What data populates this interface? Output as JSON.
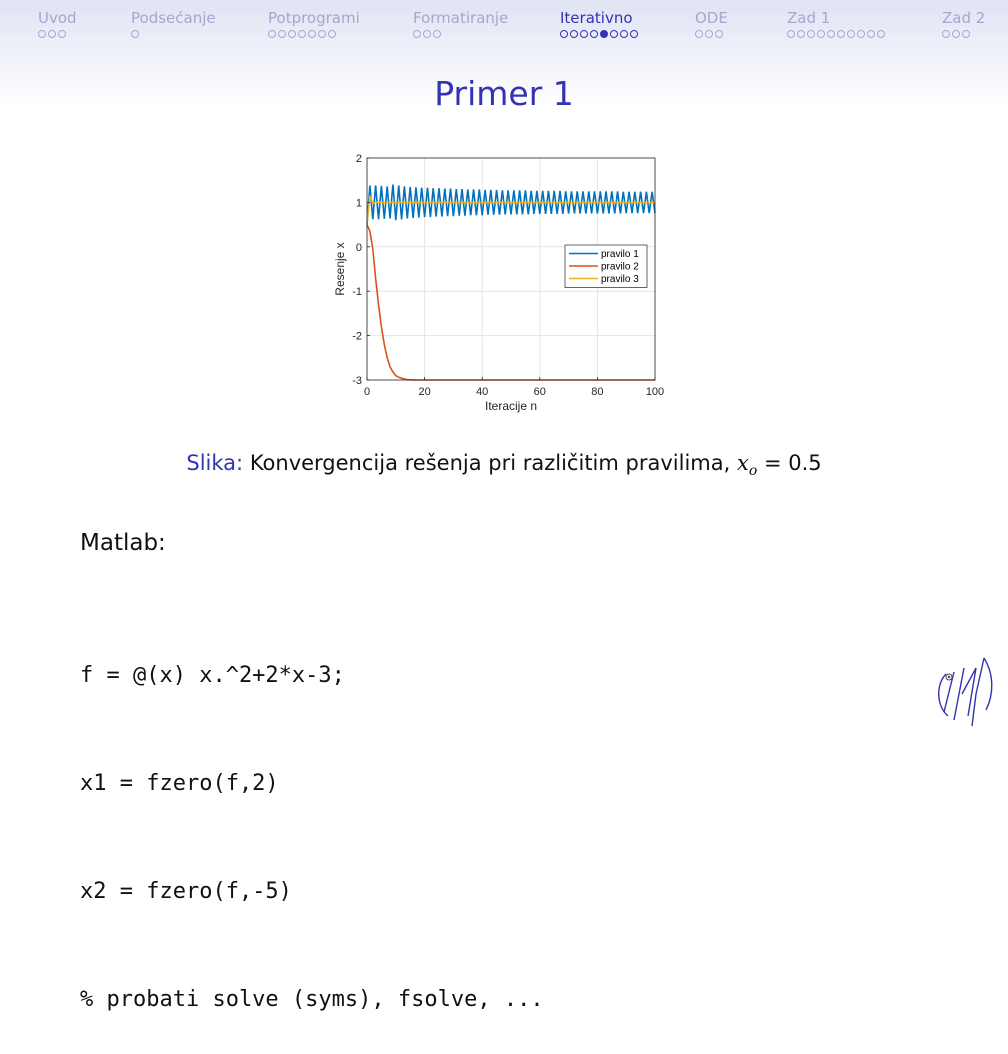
{
  "nav": {
    "sections": [
      {
        "label": "Uvod",
        "dots": 3,
        "active_dot": null
      },
      {
        "label": "Podsećanje",
        "dots": 1,
        "active_dot": null
      },
      {
        "label": "Potprogrami",
        "dots": 7,
        "active_dot": null
      },
      {
        "label": "Formatiranje",
        "dots": 3,
        "active_dot": null
      },
      {
        "label": "Iterativno",
        "dots": 8,
        "active_dot": 4
      },
      {
        "label": "ODE",
        "dots": 3,
        "active_dot": null
      },
      {
        "label": "Zad 1",
        "dots": 10,
        "active_dot": null
      },
      {
        "label": "Zad 2",
        "dots": 3,
        "active_dot": null
      }
    ],
    "active_section": "Iterativno",
    "colors": {
      "active": "#3333b3",
      "inactive": "#a4a8cf"
    }
  },
  "slide": {
    "title": "Primer 1",
    "caption_prefix": "Slika:",
    "caption_text": "Konvergencija rešenja pri različitim pravilima,",
    "caption_var": "x",
    "caption_sub": "o",
    "caption_eq": "= 0.5",
    "matlab_label": "Matlab:",
    "code": [
      "f = @(x) x.^2+2*x-3;",
      "x1 = fzero(f,2)",
      "x2 = fzero(f,-5)",
      "% probati solve (syms), fsolve, ..."
    ]
  },
  "chart_data": {
    "type": "line",
    "xlabel": "Iteracije n",
    "ylabel": "Resenje x",
    "xlim": [
      0,
      100
    ],
    "ylim": [
      -3,
      2
    ],
    "xticks": [
      0,
      20,
      40,
      60,
      80,
      100
    ],
    "yticks": [
      -3,
      -2,
      -1,
      0,
      1,
      2
    ],
    "grid": true,
    "legend_position": "right",
    "series": [
      {
        "name": "pravilo 1",
        "color": "#0072bd",
        "x": [
          0,
          1,
          2,
          3,
          4,
          5,
          6,
          7,
          8,
          9,
          10,
          11,
          12,
          13,
          14,
          15,
          16,
          17,
          18,
          19,
          20,
          21,
          22,
          23,
          24,
          25,
          26,
          27,
          28,
          29,
          30,
          31,
          32,
          33,
          34,
          35,
          36,
          37,
          38,
          39,
          40,
          41,
          42,
          43,
          44,
          45,
          46,
          47,
          48,
          49,
          50,
          51,
          52,
          53,
          54,
          55,
          56,
          57,
          58,
          59,
          60,
          61,
          62,
          63,
          64,
          65,
          66,
          67,
          68,
          69,
          70,
          71,
          72,
          73,
          74,
          75,
          76,
          77,
          78,
          79,
          80,
          81,
          82,
          83,
          84,
          85,
          86,
          87,
          88,
          89,
          90,
          91,
          92,
          93,
          94,
          95,
          96,
          97,
          98,
          99,
          100
        ],
        "values": [
          0.5,
          1.38,
          0.62,
          1.38,
          0.62,
          1.37,
          0.63,
          1.36,
          0.64,
          1.4,
          0.6,
          1.38,
          0.62,
          1.36,
          0.64,
          1.35,
          0.65,
          1.34,
          0.66,
          1.33,
          0.67,
          1.33,
          0.67,
          1.32,
          0.68,
          1.32,
          0.68,
          1.31,
          0.69,
          1.31,
          0.69,
          1.3,
          0.7,
          1.3,
          0.7,
          1.29,
          0.71,
          1.29,
          0.71,
          1.29,
          0.71,
          1.28,
          0.72,
          1.28,
          0.72,
          1.28,
          0.72,
          1.27,
          0.73,
          1.27,
          0.73,
          1.27,
          0.73,
          1.27,
          0.73,
          1.27,
          0.73,
          1.26,
          0.74,
          1.26,
          0.74,
          1.26,
          0.74,
          1.26,
          0.74,
          1.26,
          0.74,
          1.26,
          0.74,
          1.25,
          0.75,
          1.25,
          0.75,
          1.25,
          0.75,
          1.25,
          0.75,
          1.25,
          0.75,
          1.25,
          0.75,
          1.25,
          0.75,
          1.25,
          0.75,
          1.25,
          0.75,
          1.25,
          0.75,
          1.24,
          0.76,
          1.24,
          0.76,
          1.24,
          0.76,
          1.24,
          0.76,
          1.24,
          0.76,
          1.24,
          0.76
        ]
      },
      {
        "name": "pravilo 2",
        "color": "#d95319",
        "x": [
          0,
          1,
          2,
          3,
          4,
          5,
          6,
          7,
          8,
          9,
          10,
          11,
          12,
          13,
          14,
          15,
          16,
          17,
          18,
          19,
          20,
          25,
          30,
          40,
          50,
          60,
          70,
          80,
          90,
          100
        ],
        "values": [
          0.5,
          0.35,
          -0.05,
          -0.7,
          -1.3,
          -1.8,
          -2.2,
          -2.5,
          -2.7,
          -2.82,
          -2.9,
          -2.94,
          -2.96,
          -2.98,
          -2.99,
          -2.995,
          -2.998,
          -2.999,
          -3,
          -3,
          -3,
          -3,
          -3,
          -3,
          -3,
          -3,
          -3,
          -3,
          -3,
          -3
        ]
      },
      {
        "name": "pravilo 3",
        "color": "#edb120",
        "x": [
          0,
          1,
          2,
          3,
          4,
          5,
          6,
          8,
          10,
          20,
          40,
          60,
          80,
          100
        ],
        "values": [
          0.5,
          1.15,
          0.97,
          1.01,
          1.0,
          1.0,
          1.0,
          1.0,
          1.0,
          1.0,
          1.0,
          1.0,
          1.0,
          1.0
        ]
      }
    ]
  }
}
